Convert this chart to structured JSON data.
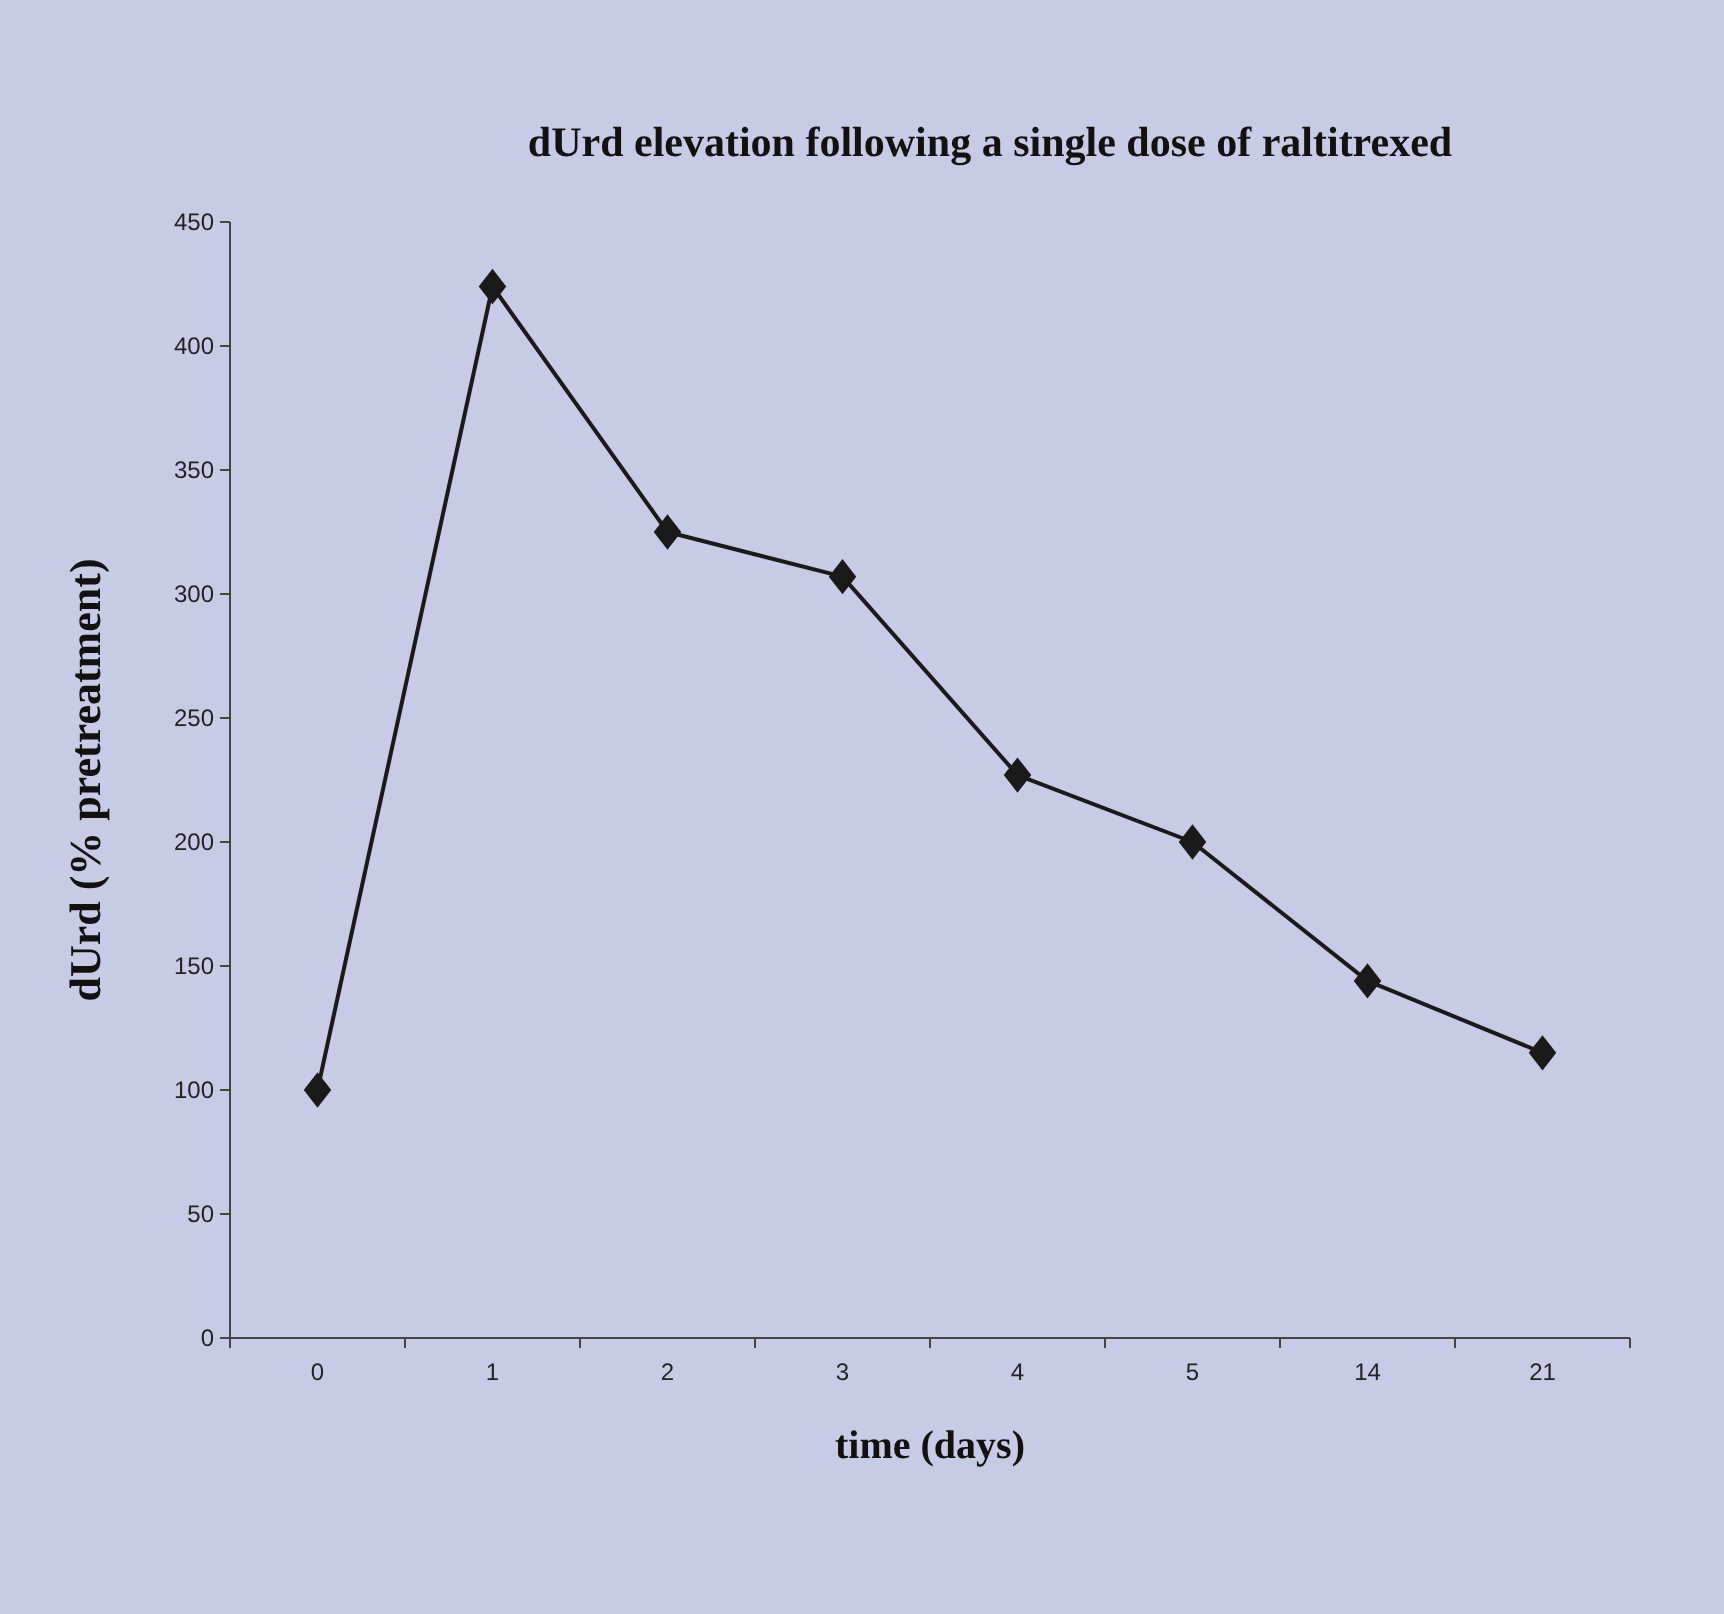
{
  "chart_data": {
    "type": "line",
    "title": "dUrd elevation following a single dose of raltitrexed",
    "xlabel": "time (days)",
    "ylabel": "dUrd (% pretreatment)",
    "categories": [
      "0",
      "1",
      "2",
      "3",
      "4",
      "5",
      "14",
      "21"
    ],
    "series": [
      {
        "color": "#1a1a1a",
        "values": [
          100,
          424,
          325,
          307,
          227,
          200,
          144,
          115
        ]
      }
    ],
    "ylim": [
      0,
      450
    ],
    "yticks": [
      0,
      50,
      100,
      150,
      200,
      250,
      300,
      350,
      400,
      450
    ],
    "marker": "diamond",
    "line_style": "solid"
  }
}
